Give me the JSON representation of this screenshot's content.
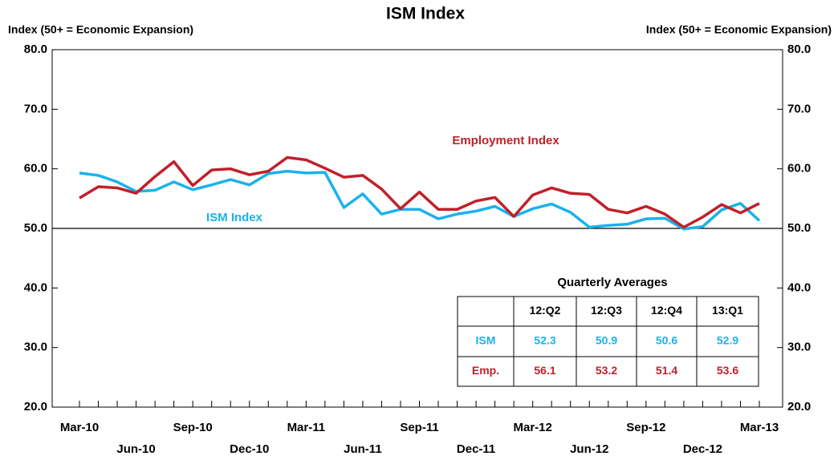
{
  "chart_data": {
    "type": "line",
    "title": "ISM Index",
    "y_label": "Index (50+ = Economic Expansion)",
    "y2_label": "Index (50+ = Economic Expansion)",
    "categories": [
      "Mar-10",
      null,
      null,
      "Jun-10",
      null,
      null,
      "Sep-10",
      null,
      null,
      "Dec-10",
      null,
      null,
      "Mar-11",
      null,
      null,
      "Jun-11",
      null,
      null,
      "Sep-11",
      null,
      null,
      "Dec-11",
      null,
      null,
      "Mar-12",
      null,
      null,
      "Jun-12",
      null,
      null,
      "Sep-12",
      null,
      null,
      "Dec-12",
      null,
      null,
      "Mar-13"
    ],
    "series": [
      {
        "name": "ISM Index",
        "color": "#1ab2ec",
        "values": [
          59.3,
          58.9,
          57.8,
          56.2,
          56.4,
          57.8,
          56.5,
          57.3,
          58.2,
          57.3,
          59.2,
          59.6,
          59.3,
          59.4,
          53.5,
          55.8,
          52.4,
          53.2,
          53.2,
          51.6,
          52.4,
          52.9,
          53.7,
          52.0,
          53.3,
          54.1,
          52.7,
          50.2,
          50.5,
          50.7,
          51.6,
          51.7,
          49.9,
          50.3,
          53.1,
          54.2,
          51.3
        ]
      },
      {
        "name": "Employment Index",
        "color": "#c0202a",
        "values": [
          55.1,
          57.0,
          56.8,
          55.9,
          58.7,
          61.2,
          57.2,
          59.8,
          60.0,
          59.0,
          59.6,
          61.9,
          61.5,
          60.1,
          58.6,
          58.9,
          56.6,
          53.3,
          56.1,
          53.2,
          53.2,
          54.6,
          55.2,
          52.0,
          55.6,
          56.8,
          55.9,
          55.7,
          53.2,
          52.6,
          53.7,
          52.4,
          50.2,
          51.9,
          54.0,
          52.6,
          54.2
        ]
      }
    ],
    "ylim": [
      20,
      80
    ],
    "yticks": [
      {
        "value": 20,
        "label": "20.0"
      },
      {
        "value": 30,
        "label": "30.0"
      },
      {
        "value": 40,
        "label": "40.0"
      },
      {
        "value": 50,
        "label": "50.0"
      },
      {
        "value": 60,
        "label": "60.0"
      },
      {
        "value": 70,
        "label": "70.0"
      },
      {
        "value": 80,
        "label": "80.0"
      }
    ],
    "y2lim": [
      20,
      80
    ],
    "y2ticks": [
      {
        "value": 20,
        "label": "20.0"
      },
      {
        "value": 30,
        "label": "30.0"
      },
      {
        "value": 40,
        "label": "40.0"
      },
      {
        "value": 50,
        "label": "50.0"
      },
      {
        "value": 60,
        "label": "60.0"
      },
      {
        "value": 70,
        "label": "70.0"
      },
      {
        "value": 80,
        "label": "80.0"
      }
    ],
    "reference_line": 50,
    "grid": false,
    "table": {
      "title": "Quarterly Averages",
      "columns": [
        "12:Q2",
        "12:Q3",
        "12:Q4",
        "13:Q1"
      ],
      "rows": [
        {
          "label": "ISM",
          "values": [
            52.3,
            50.9,
            50.6,
            52.9
          ]
        },
        {
          "label": "Emp.",
          "values": [
            56.1,
            53.2,
            51.4,
            53.6
          ]
        }
      ]
    }
  }
}
